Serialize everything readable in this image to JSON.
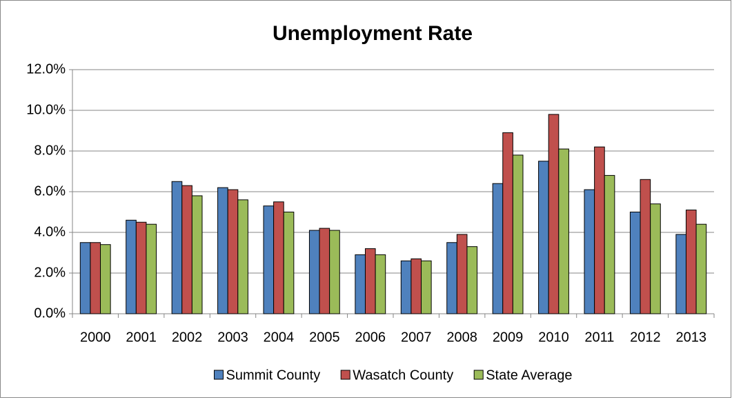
{
  "chart_data": {
    "type": "bar",
    "title": "Unemployment Rate",
    "categories": [
      "2000",
      "2001",
      "2002",
      "2003",
      "2004",
      "2005",
      "2006",
      "2007",
      "2008",
      "2009",
      "2010",
      "2011",
      "2012",
      "2013"
    ],
    "series": [
      {
        "name": "Summit County",
        "color": "#4f81bd",
        "values": [
          3.5,
          4.6,
          6.5,
          6.2,
          5.3,
          4.1,
          2.9,
          2.6,
          3.5,
          6.4,
          7.5,
          6.1,
          5.0,
          3.9
        ]
      },
      {
        "name": "Wasatch County",
        "color": "#c0504d",
        "values": [
          3.5,
          4.5,
          6.3,
          6.1,
          5.5,
          4.2,
          3.2,
          2.7,
          3.9,
          8.9,
          9.8,
          8.2,
          6.6,
          5.1
        ]
      },
      {
        "name": "State Average",
        "color": "#9bbb59",
        "values": [
          3.4,
          4.4,
          5.8,
          5.6,
          5.0,
          4.1,
          2.9,
          2.6,
          3.3,
          7.8,
          8.1,
          6.8,
          5.4,
          4.4
        ]
      }
    ],
    "ylim": [
      0,
      12
    ],
    "yticks": [
      {
        "value": 0,
        "label": "0.0%"
      },
      {
        "value": 2,
        "label": "2.0%"
      },
      {
        "value": 4,
        "label": "4.0%"
      },
      {
        "value": 6,
        "label": "6.0%"
      },
      {
        "value": 8,
        "label": "8.0%"
      },
      {
        "value": 10,
        "label": "10.0%"
      },
      {
        "value": 12,
        "label": "12.0%"
      }
    ],
    "grid": true,
    "legend": "bottom"
  }
}
